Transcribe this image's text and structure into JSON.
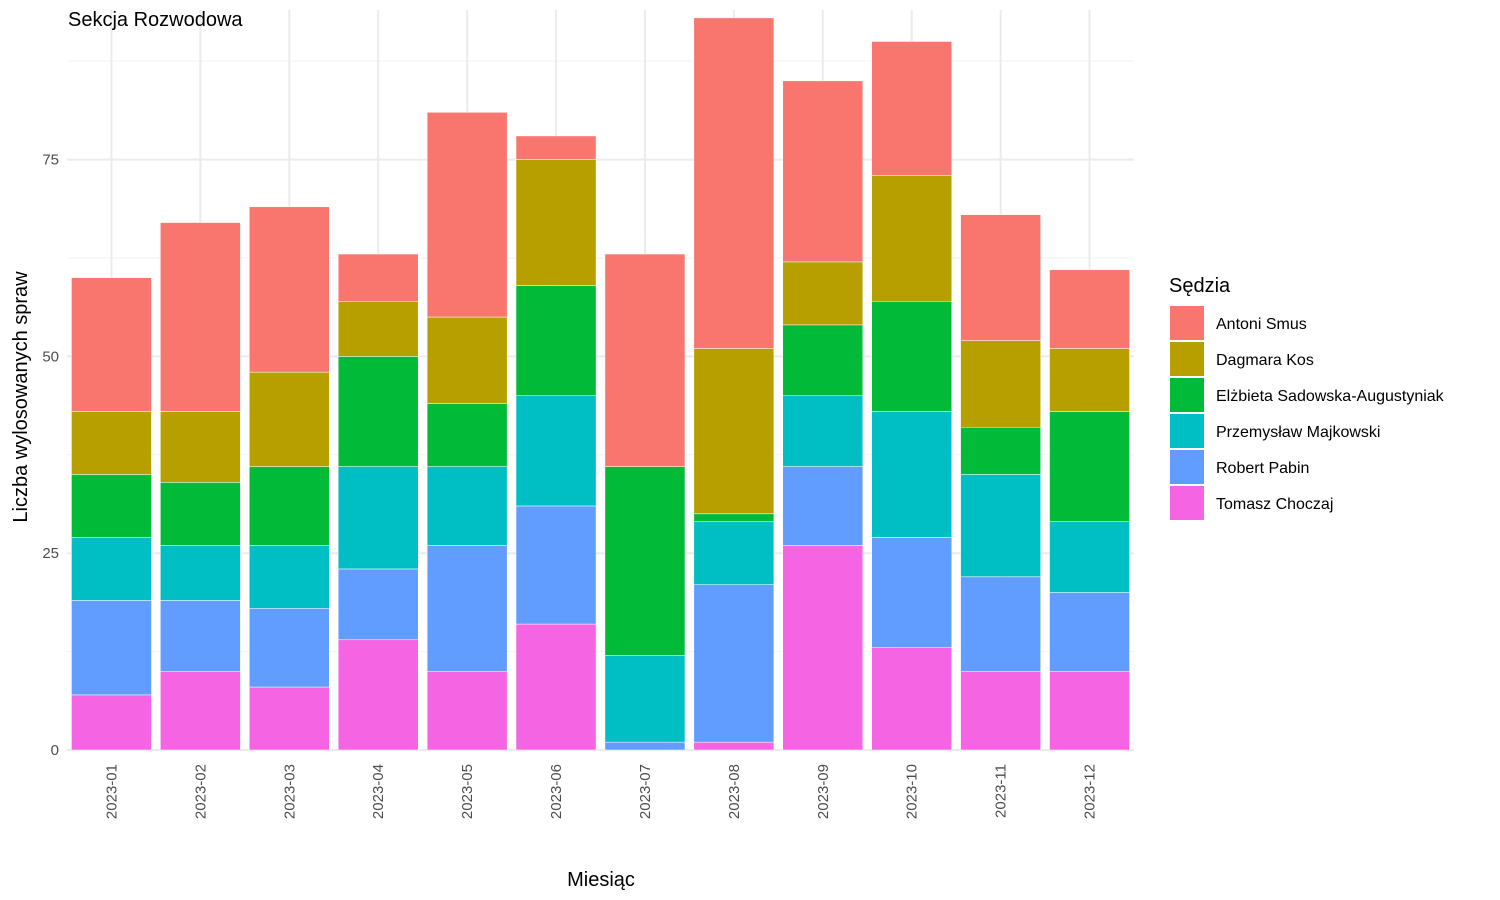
{
  "chart_data": {
    "type": "bar",
    "stacked": true,
    "title": "Sekcja Rozwodowa",
    "xlabel": "Miesiąc",
    "ylabel": "Liczba wylosowanych spraw",
    "ylim": [
      0,
      94
    ],
    "yticks": [
      0,
      25,
      50,
      75
    ],
    "grid": true,
    "legend_title": "Sędzia",
    "legend_position": "right",
    "categories": [
      "2023-01",
      "2023-02",
      "2023-03",
      "2023-04",
      "2023-05",
      "2023-06",
      "2023-07",
      "2023-08",
      "2023-09",
      "2023-10",
      "2023-11",
      "2023-12"
    ],
    "series": [
      {
        "name": "Tomasz Choczaj",
        "color": "#F564E3",
        "values": [
          7,
          10,
          8,
          14,
          10,
          16,
          0,
          1,
          26,
          13,
          10,
          10
        ]
      },
      {
        "name": "Robert Pabin",
        "color": "#619CFF",
        "values": [
          12,
          9,
          10,
          9,
          16,
          15,
          1,
          20,
          10,
          14,
          12,
          10
        ]
      },
      {
        "name": "Przemysław Majkowski",
        "color": "#00BFC4",
        "values": [
          8,
          7,
          8,
          13,
          10,
          14,
          11,
          8,
          9,
          16,
          13,
          9
        ]
      },
      {
        "name": "Elżbieta Sadowska-Augustyniak",
        "color": "#00BA38",
        "values": [
          8,
          8,
          10,
          14,
          8,
          14,
          24,
          1,
          9,
          14,
          6,
          14
        ]
      },
      {
        "name": "Dagmara Kos",
        "color": "#B79F00",
        "values": [
          8,
          9,
          12,
          7,
          11,
          16,
          0,
          21,
          8,
          16,
          11,
          8
        ]
      },
      {
        "name": "Antoni Smus",
        "color": "#F8766D",
        "values": [
          17,
          24,
          21,
          6,
          26,
          3,
          27,
          42,
          23,
          17,
          16,
          10
        ]
      }
    ],
    "legend_order": [
      "Antoni Smus",
      "Dagmara Kos",
      "Elżbieta Sadowska-Augustyniak",
      "Przemysław Majkowski",
      "Robert Pabin",
      "Tomasz Choczaj"
    ]
  }
}
